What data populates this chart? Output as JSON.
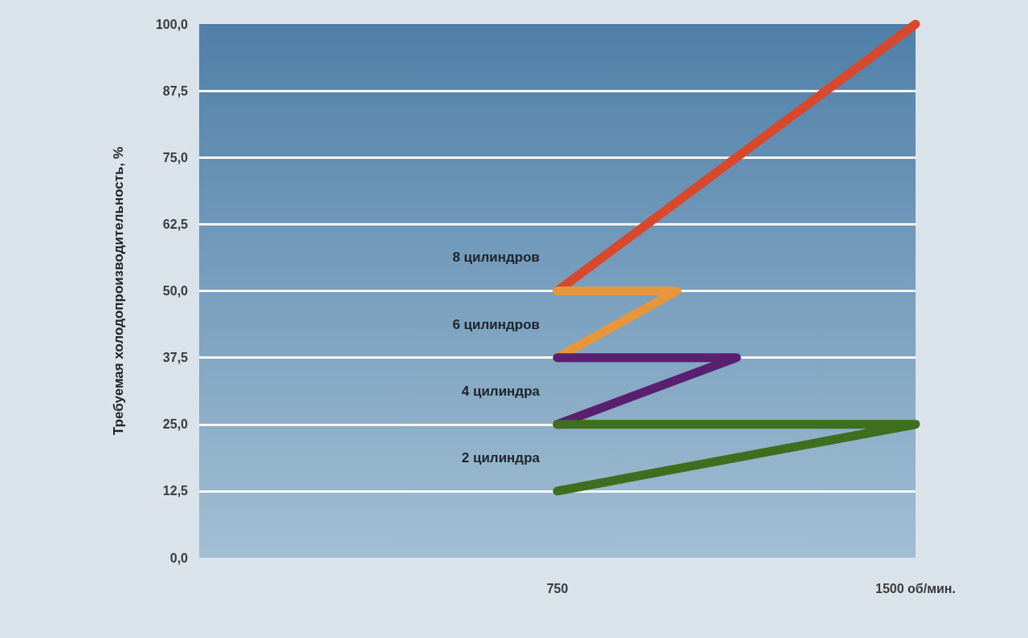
{
  "chart_data": {
    "type": "line",
    "ylabel": "Требуемая холодопроизводительность, %",
    "xlim": [
      0,
      1500
    ],
    "xticks": [
      750,
      {
        "value": 1500,
        "label": "1500 об/мин."
      }
    ],
    "ylim": [
      0,
      100
    ],
    "yticks": [
      {
        "value": 0,
        "label": "0,0"
      },
      {
        "value": 12.5,
        "label": "12,5"
      },
      {
        "value": 25,
        "label": "25,0"
      },
      {
        "value": 37.5,
        "label": "37,5"
      },
      {
        "value": 50,
        "label": "50,0"
      },
      {
        "value": 62.5,
        "label": "62,5"
      },
      {
        "value": 75,
        "label": "75,0"
      },
      {
        "value": 87.5,
        "label": "87,5"
      },
      {
        "value": 100,
        "label": "100,0"
      }
    ],
    "grid": true,
    "marker": "none",
    "line_style": "solid",
    "series": [
      {
        "name": "8 цилиндров",
        "color": "#d9482a",
        "x": [
          750,
          1500
        ],
        "values": [
          50,
          100
        ]
      },
      {
        "name": "6 цилиндров",
        "color": "#e8963a",
        "x": [
          750,
          1000,
          750
        ],
        "values": [
          37.5,
          50,
          50
        ]
      },
      {
        "name": "4 цилиндра",
        "color": "#5a2070",
        "x": [
          750,
          1125,
          750
        ],
        "values": [
          25,
          37.5,
          37.5
        ]
      },
      {
        "name": "2 цилиндра",
        "color": "#3f6e1e",
        "x": [
          750,
          1500,
          750
        ],
        "values": [
          12.5,
          25,
          25
        ]
      }
    ]
  }
}
